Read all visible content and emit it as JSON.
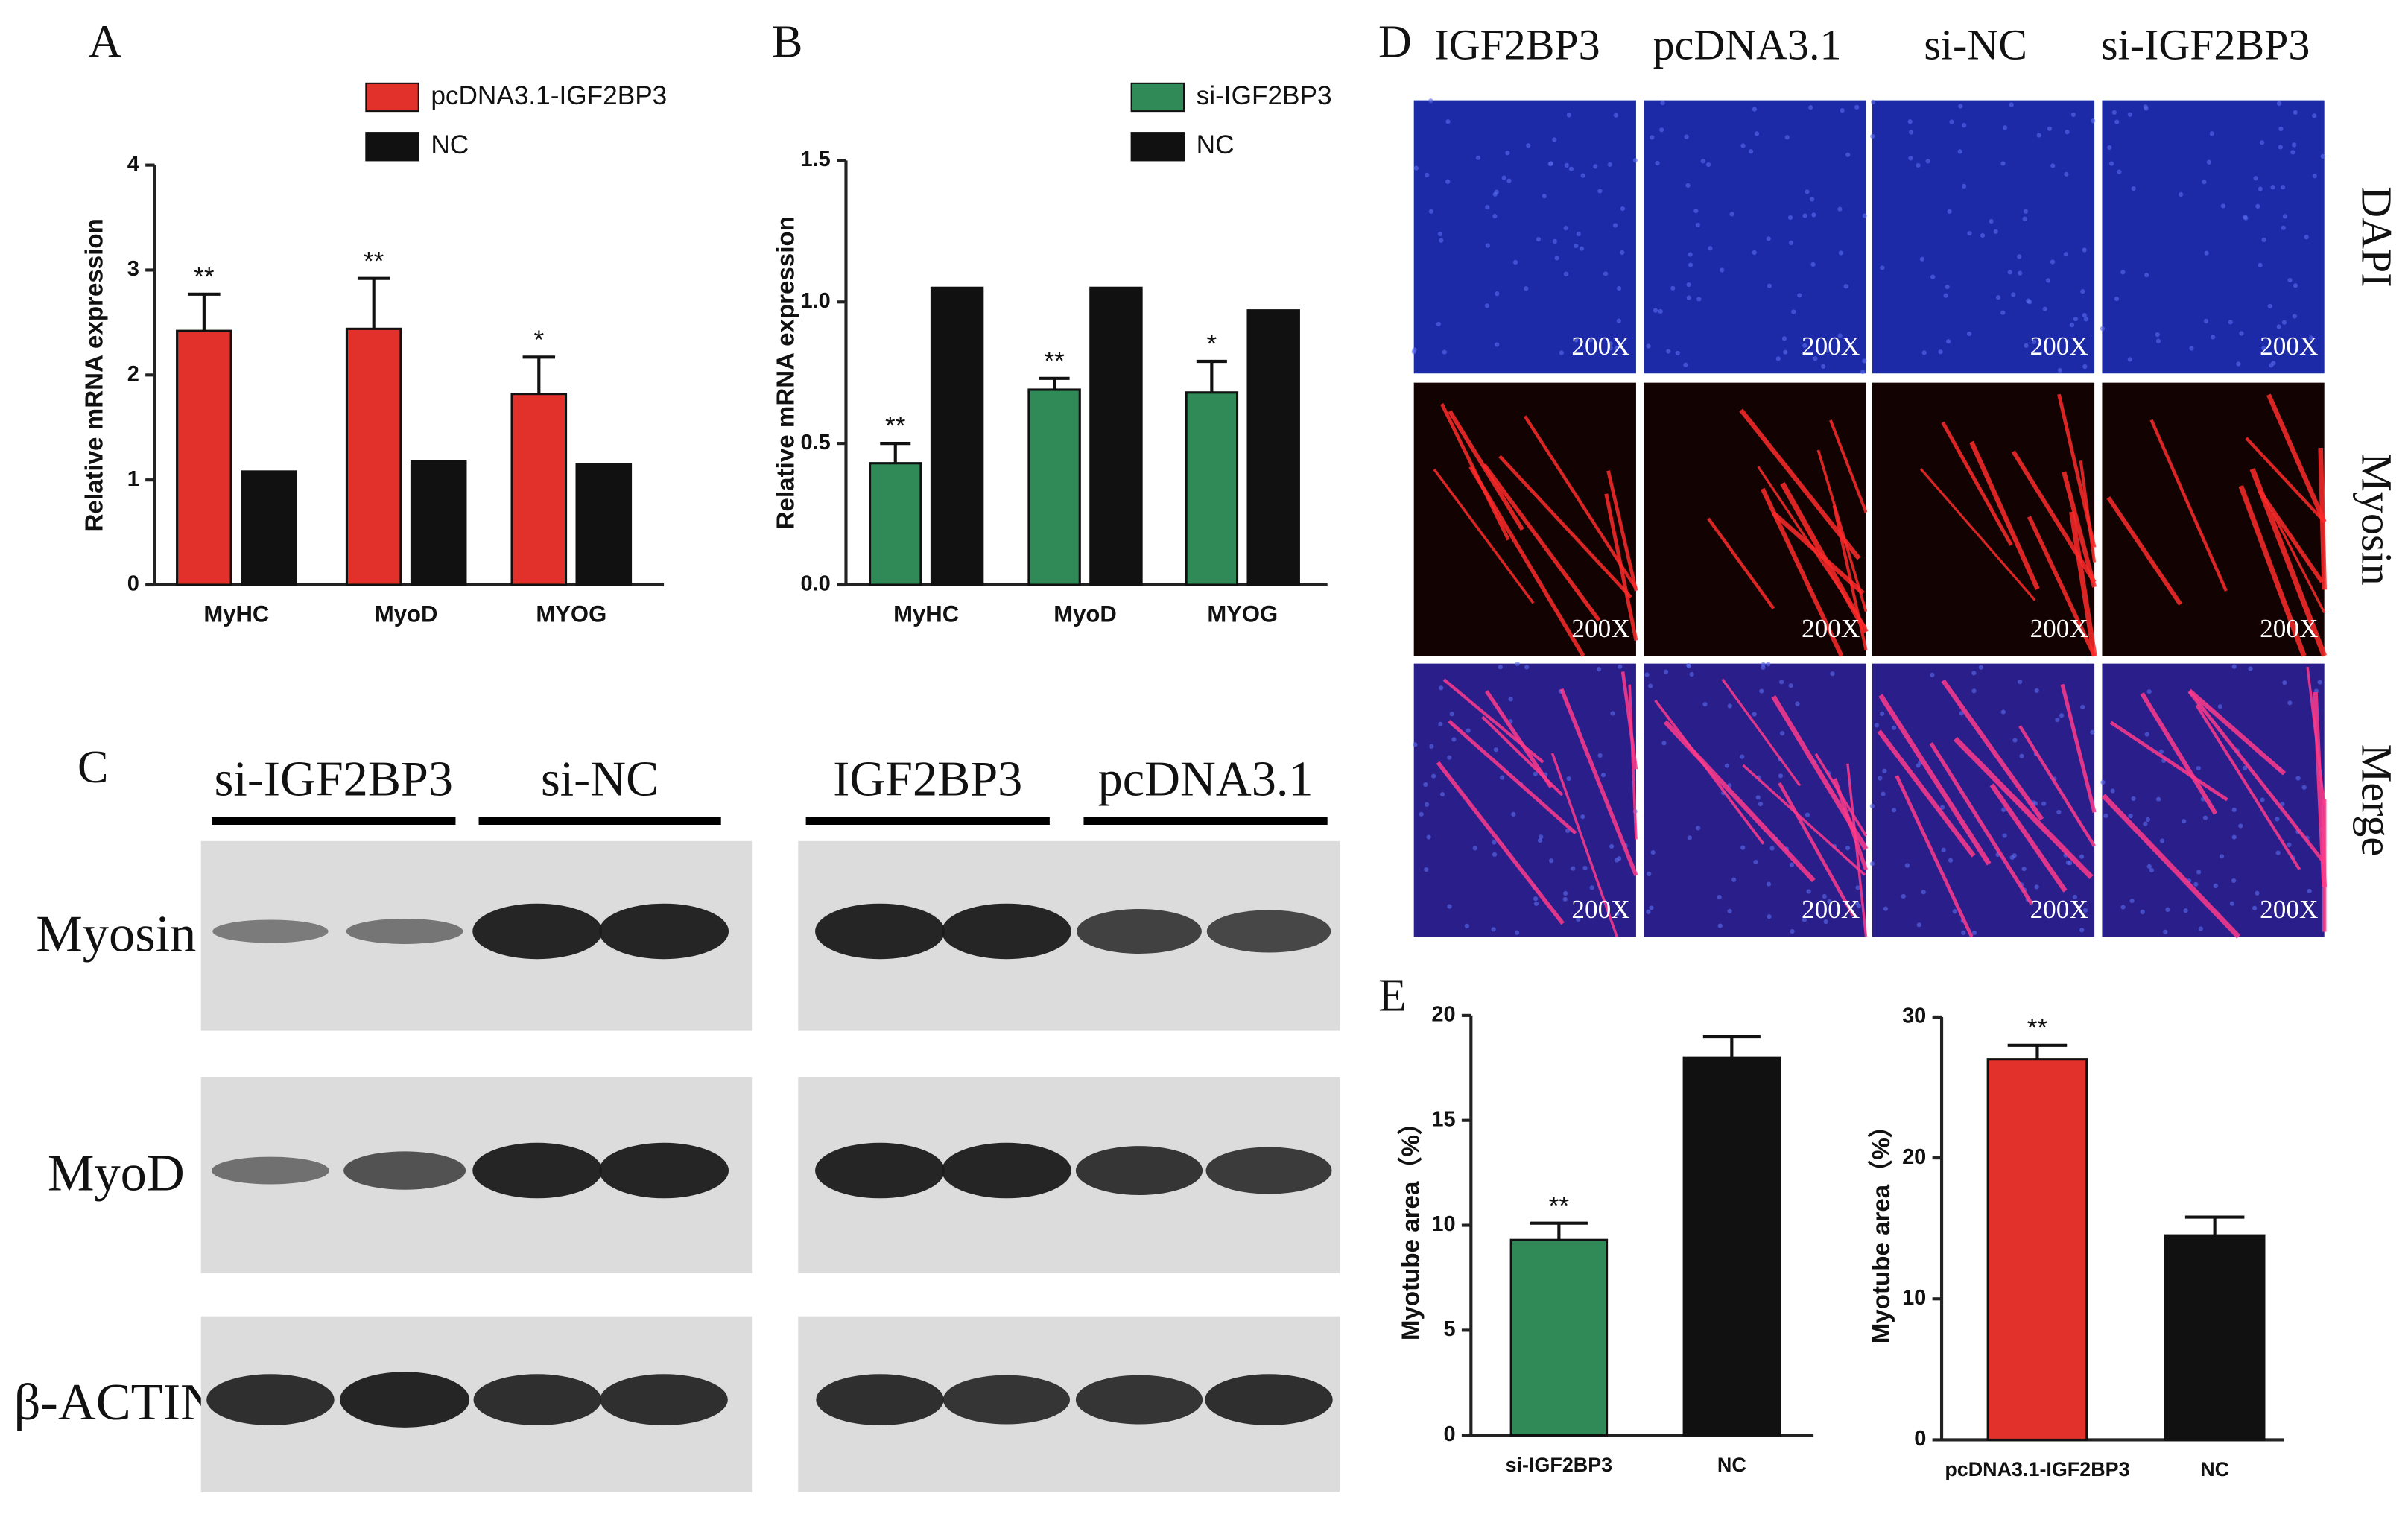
{
  "chart_data": [
    {
      "type": "bar",
      "panel": "A",
      "ylabel": "Relative mRNA expression",
      "categories": [
        "MyHC",
        "MyoD",
        "MYOG"
      ],
      "series": [
        {
          "name": "pcDNA3.1-IGF2BP3",
          "color": "#e2312b",
          "values": [
            2.42,
            2.44,
            1.82
          ],
          "errors": [
            0.35,
            0.48,
            0.35
          ],
          "significance": [
            "**",
            "**",
            "*"
          ]
        },
        {
          "name": "NC",
          "color": "#111111",
          "values": [
            1.08,
            1.18,
            1.15
          ]
        }
      ],
      "ylim": [
        0,
        4
      ],
      "yticks": [
        0,
        1,
        2,
        3,
        4
      ]
    },
    {
      "type": "bar",
      "panel": "B",
      "ylabel": "Relative mRNA expression",
      "categories": [
        "MyHC",
        "MyoD",
        "MYOG"
      ],
      "series": [
        {
          "name": "si-IGF2BP3",
          "color": "#2f8a57",
          "values": [
            0.43,
            0.69,
            0.68
          ],
          "errors": [
            0.07,
            0.04,
            0.11
          ],
          "significance": [
            "**",
            "**",
            "*"
          ]
        },
        {
          "name": "NC",
          "color": "#111111",
          "values": [
            1.05,
            1.05,
            0.97
          ]
        }
      ],
      "ylim": [
        0,
        1.5
      ],
      "yticks": [
        {
          "value": 0,
          "label": "0.0"
        },
        0.5,
        {
          "value": 1,
          "label": "1.0"
        },
        1.5
      ]
    },
    {
      "type": "bar",
      "panel": "E",
      "ylabel": "Myotube area（%）",
      "categories": [
        "si-IGF2BP3",
        "NC"
      ],
      "values": [
        9.3,
        18
      ],
      "errors": [
        0.8,
        1.0
      ],
      "colors": [
        "#2f8a57",
        "#111111"
      ],
      "significance": [
        "**",
        null
      ],
      "ylim": [
        0,
        20
      ],
      "yticks": [
        0,
        5,
        10,
        15,
        20
      ]
    },
    {
      "type": "bar",
      "ylabel": "Myotube area（%）",
      "categories": [
        "pcDNA3.1-IGF2BP3",
        "NC"
      ],
      "values": [
        27,
        14.5
      ],
      "errors": [
        1.0,
        1.3
      ],
      "colors": [
        "#e2312b",
        "#111111"
      ],
      "significance": [
        "**",
        null
      ],
      "ylim": [
        0,
        30
      ],
      "yticks": [
        0,
        10,
        20,
        30
      ]
    }
  ],
  "blots": {
    "panel": "C",
    "groups": [
      "si-IGF2BP3",
      "si-NC",
      "IGF2BP3",
      "pcDNA3.1"
    ],
    "rows": [
      "Myosin",
      "MyoD",
      "β-ACTIN"
    ]
  },
  "micrographs": {
    "panel": "D",
    "columns": [
      "IGF2BP3",
      "pcDNA3.1",
      "si-NC",
      "si-IGF2BP3"
    ],
    "rows": [
      "DAPI",
      "Myosin",
      "Merge"
    ],
    "magnification": "200X"
  }
}
